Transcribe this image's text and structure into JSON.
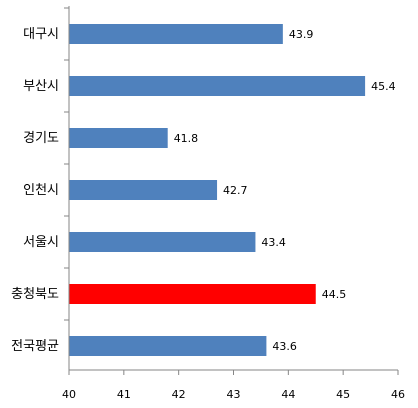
{
  "chart_data": {
    "type": "bar",
    "orientation": "horizontal",
    "categories": [
      "대구시",
      "부산시",
      "경기도",
      "인천시",
      "서울시",
      "충청북도",
      "전국평균"
    ],
    "values": [
      43.9,
      45.4,
      41.8,
      42.7,
      43.4,
      44.5,
      43.6
    ],
    "value_labels": [
      "43.9",
      "45.4",
      "41.8",
      "42.7",
      "43.4",
      "44.5",
      "43.6"
    ],
    "bar_colors": [
      "#4f81bd",
      "#4f81bd",
      "#4f81bd",
      "#4f81bd",
      "#4f81bd",
      "#ff0000",
      "#4f81bd"
    ],
    "xlim": [
      40,
      46
    ],
    "x_ticks": [
      "40",
      "41",
      "42",
      "43",
      "44",
      "45",
      "46"
    ],
    "title": "",
    "xlabel": "",
    "ylabel": "",
    "grid": false,
    "legend": "none"
  }
}
